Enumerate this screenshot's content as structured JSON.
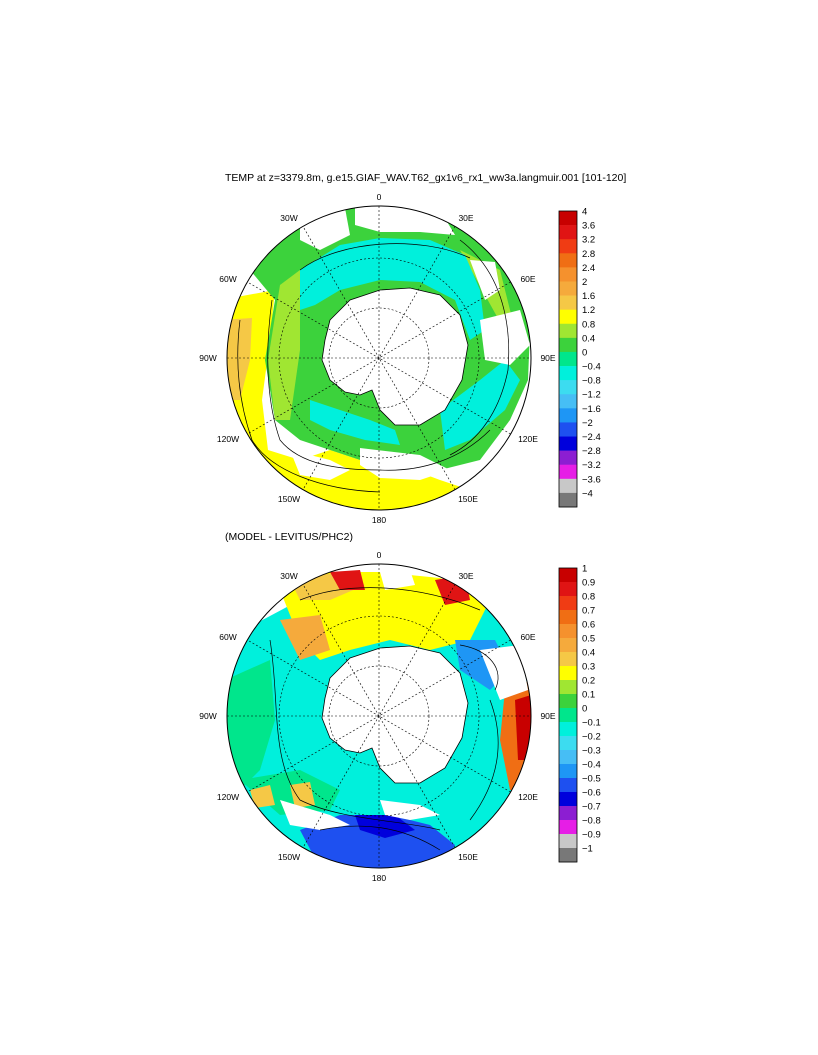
{
  "figure": {
    "title": "TEMP at z=3379.8m, g.e15.GIAF_WAV.T62_gx1v6_rx1_ww3a.langmuir.001 [101-120]",
    "subtitle": "(MODEL - LEVITUS/PHC2)"
  },
  "maps": [
    {
      "name": "model-temperature-map",
      "projection": "south-polar-stereographic",
      "lon_labels": [
        "0",
        "30E",
        "60E",
        "90E",
        "120E",
        "150E",
        "180",
        "150W",
        "120W",
        "90W",
        "60W",
        "30W"
      ],
      "colorbar": {
        "labels": [
          "4",
          "3.6",
          "3.2",
          "2.8",
          "2.4",
          "2",
          "1.6",
          "1.2",
          "0.8",
          "0.4",
          "0",
          "−0.4",
          "−0.8",
          "−1.2",
          "−1.6",
          "−2",
          "−2.4",
          "−2.8",
          "−3.2",
          "−3.6",
          "−4"
        ],
        "colors": [
          "#c80000",
          "#e01414",
          "#f03c14",
          "#f06e14",
          "#f5912d",
          "#f5aa3c",
          "#f5c846",
          "#ffff00",
          "#a0e632",
          "#3cd23c",
          "#00e68c",
          "#00f0dc",
          "#3cdcf0",
          "#46bef5",
          "#1e96f5",
          "#1e50f0",
          "#0000dc",
          "#8c1ed2",
          "#e61ee6",
          "#c8c8c8",
          "#787878"
        ]
      }
    },
    {
      "name": "difference-map",
      "projection": "south-polar-stereographic",
      "lon_labels": [
        "0",
        "30E",
        "60E",
        "90E",
        "120E",
        "150E",
        "180",
        "150W",
        "120W",
        "90W",
        "60W",
        "30W"
      ],
      "colorbar": {
        "labels": [
          "1",
          "0.9",
          "0.8",
          "0.7",
          "0.6",
          "0.5",
          "0.4",
          "0.3",
          "0.2",
          "0.1",
          "0",
          "−0.1",
          "−0.2",
          "−0.3",
          "−0.4",
          "−0.5",
          "−0.6",
          "−0.7",
          "−0.8",
          "−0.9",
          "−1"
        ],
        "colors": [
          "#c80000",
          "#e01414",
          "#f03c14",
          "#f06e14",
          "#f5912d",
          "#f5aa3c",
          "#f5c846",
          "#ffff00",
          "#a0e632",
          "#3cd23c",
          "#00e68c",
          "#00f0dc",
          "#3cdcf0",
          "#46bef5",
          "#1e96f5",
          "#1e50f0",
          "#0000dc",
          "#8c1ed2",
          "#e61ee6",
          "#c8c8c8",
          "#787878"
        ]
      }
    }
  ]
}
